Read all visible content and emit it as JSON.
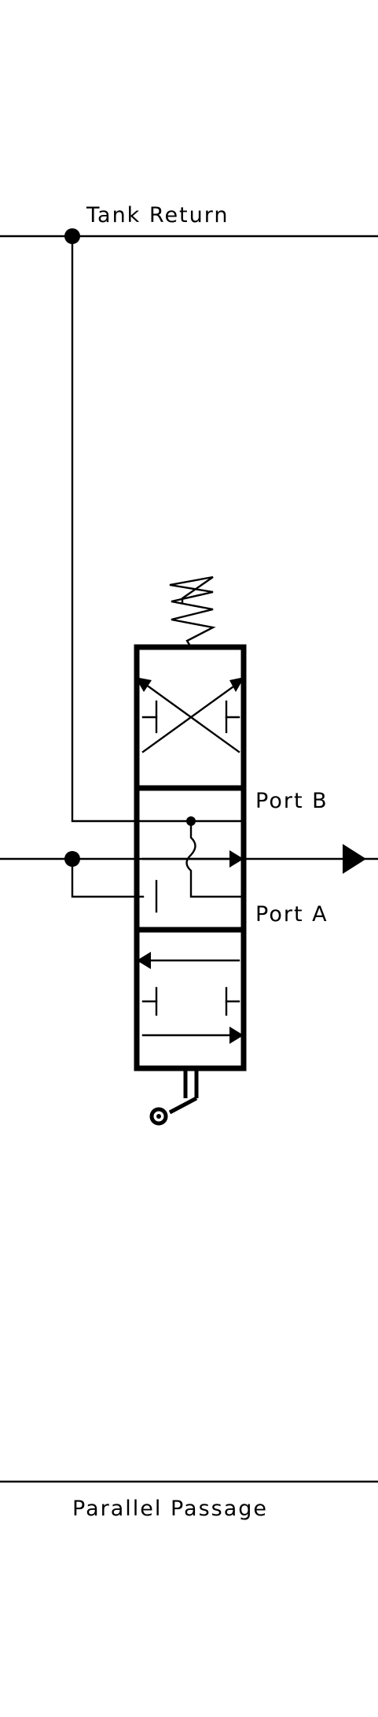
{
  "labels": {
    "tank_return": "Tank Return",
    "port_b": "Port B",
    "port_a": "Port A",
    "parallel_passage": "Parallel Passage"
  }
}
